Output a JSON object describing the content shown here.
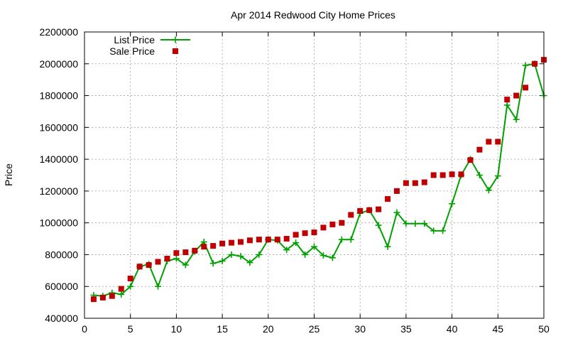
{
  "chart_data": {
    "type": "line",
    "title": "Apr 2014 Redwood City Home Prices",
    "xlabel": "",
    "ylabel": "Price",
    "xlim": [
      0,
      50
    ],
    "ylim": [
      400000,
      2200000
    ],
    "x_ticks": [
      0,
      5,
      10,
      15,
      20,
      25,
      30,
      35,
      40,
      45,
      50
    ],
    "y_ticks": [
      400000,
      600000,
      800000,
      1000000,
      1200000,
      1400000,
      1600000,
      1800000,
      2000000,
      2200000
    ],
    "x_tick_labels": [
      "0",
      "5",
      "10",
      "15",
      "20",
      "25",
      "30",
      "35",
      "40",
      "45",
      "50"
    ],
    "y_tick_labels": [
      "400000",
      "600000",
      "800000",
      "1000000",
      "1200000",
      "1400000",
      "1600000",
      "1800000",
      "2000000",
      "2200000"
    ],
    "grid": true,
    "legend_position": "top-left",
    "x": [
      1,
      2,
      3,
      4,
      5,
      6,
      7,
      8,
      9,
      10,
      11,
      12,
      13,
      14,
      15,
      16,
      17,
      18,
      19,
      20,
      21,
      22,
      23,
      24,
      25,
      26,
      27,
      28,
      29,
      30,
      31,
      32,
      33,
      34,
      35,
      36,
      37,
      38,
      39,
      40,
      41,
      42,
      43,
      44,
      45,
      46,
      47,
      48,
      49,
      50
    ],
    "series": [
      {
        "name": "List Price",
        "style": "line+cross",
        "color": "#00a000",
        "values": [
          545000,
          540000,
          560000,
          550000,
          600000,
          725000,
          740000,
          600000,
          760000,
          775000,
          735000,
          820000,
          880000,
          745000,
          760000,
          800000,
          790000,
          750000,
          800000,
          895000,
          890000,
          830000,
          875000,
          800000,
          850000,
          795000,
          780000,
          895000,
          895000,
          1060000,
          1080000,
          985000,
          850000,
          1065000,
          995000,
          995000,
          995000,
          950000,
          950000,
          1120000,
          1300000,
          1400000,
          1300000,
          1205000,
          1295000,
          1740000,
          1650000,
          1990000,
          2000000,
          1800000
        ]
      },
      {
        "name": "Sale Price",
        "style": "square",
        "color": "#c00000",
        "values": [
          520000,
          530000,
          540000,
          585000,
          650000,
          725000,
          735000,
          755000,
          775000,
          810000,
          815000,
          825000,
          850000,
          855000,
          870000,
          875000,
          880000,
          890000,
          895000,
          895000,
          895000,
          900000,
          925000,
          935000,
          940000,
          970000,
          990000,
          1000000,
          1050000,
          1075000,
          1080000,
          1085000,
          1150000,
          1200000,
          1250000,
          1250000,
          1255000,
          1300000,
          1300000,
          1305000,
          1305000,
          1395000,
          1460000,
          1510000,
          1510000,
          1775000,
          1800000,
          1850000,
          2000000,
          2025000
        ]
      }
    ]
  }
}
